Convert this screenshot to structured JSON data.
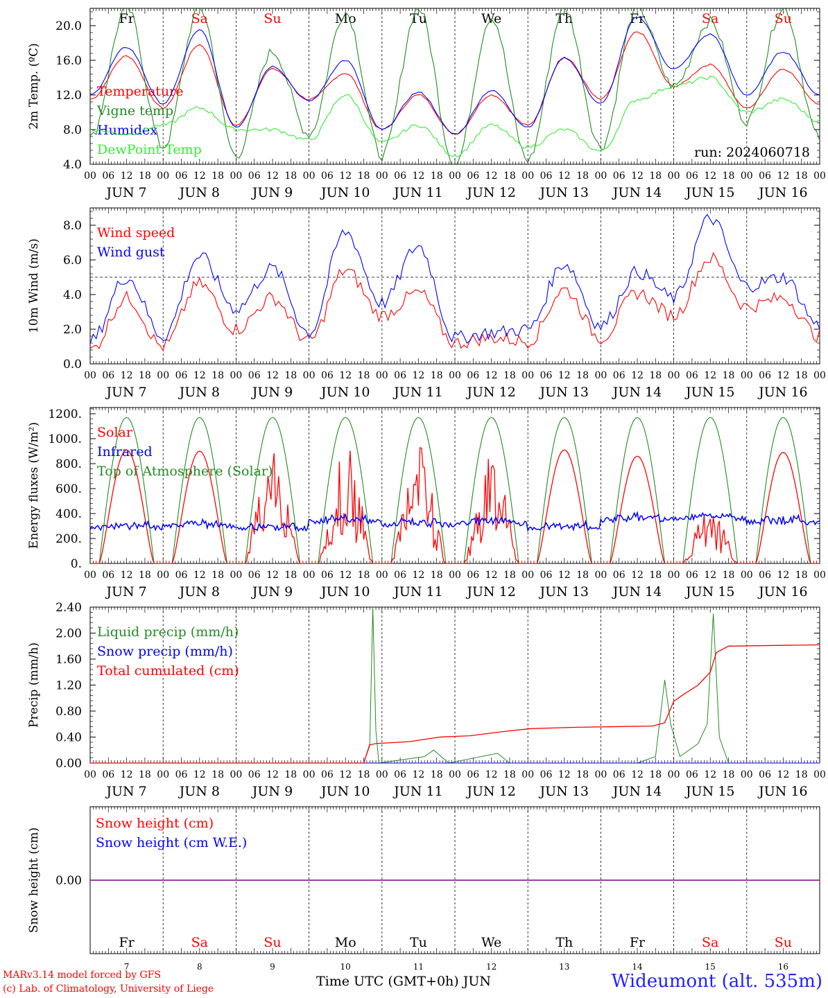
{
  "run_label": "run: 2024060718",
  "hour_ticks": [
    "00",
    "06",
    "12",
    "18"
  ],
  "last_hour_tick": "00",
  "month": "JUN",
  "days": [
    "7",
    "8",
    "9",
    "10",
    "11",
    "12",
    "13",
    "14",
    "15",
    "16"
  ],
  "day_names": [
    "Fr",
    "Sa",
    "Su",
    "Mo",
    "Tu",
    "We",
    "Th",
    "Fr",
    "Sa",
    "Su"
  ],
  "weekend_flags": [
    false,
    true,
    true,
    false,
    false,
    false,
    false,
    false,
    true,
    true
  ],
  "x_axis_title": "Time UTC (GMT+0h)",
  "x_axis_month": "JUN",
  "credits": [
    "MARv3.14 model forced by GFS",
    "(c) Lab. of Climatology, University of Liege"
  ],
  "station": "Wideumont (alt. 535m)",
  "colors": {
    "red": "#ff0000",
    "blue": "#0000ff",
    "green": "#00aa00",
    "darkgreen": "#228b22",
    "lightgreen": "#33ee33",
    "purple": "#800080",
    "weekday": "#000000",
    "weekend": "#ff0000"
  },
  "chart_data": [
    {
      "type": "line",
      "ylabel": "2m Temp. (ºC)",
      "ylim": [
        4,
        22
      ],
      "yticks": [
        "4.0",
        "8.0",
        "12.0",
        "16.0",
        "20.0"
      ],
      "ytick_values": [
        4,
        8,
        12,
        16,
        20
      ],
      "x_hours": [
        0,
        12,
        24,
        36,
        48,
        60,
        72,
        84,
        96,
        108,
        120,
        132,
        144,
        156,
        168,
        180,
        192,
        204,
        216,
        228,
        240
      ],
      "series": [
        {
          "name": "Temperature",
          "color": "#ff0000",
          "values": [
            11.5,
            16.5,
            10.5,
            17.8,
            8.5,
            15.0,
            11.5,
            14.5,
            8.0,
            12.0,
            7.5,
            12.0,
            8.5,
            16.3,
            11.5,
            19.3,
            13.0,
            15.5,
            10.5,
            15.0,
            11.0
          ]
        },
        {
          "name": "Vigne temp",
          "color": "#228b22",
          "values": [
            7.0,
            22.0,
            6.0,
            22.0,
            5.0,
            17.0,
            7.5,
            21.5,
            5.0,
            22.0,
            4.0,
            21.0,
            4.5,
            22.0,
            6.0,
            22.0,
            13.0,
            20.5,
            9.0,
            22.0,
            7.0
          ]
        },
        {
          "name": "Humidex",
          "color": "#0000ff",
          "values": [
            12.0,
            17.5,
            11.0,
            19.5,
            8.3,
            15.3,
            11.3,
            16.0,
            8.0,
            12.3,
            7.5,
            12.5,
            8.3,
            16.3,
            11.0,
            21.0,
            15.0,
            19.0,
            12.0,
            17.0,
            12.0
          ]
        },
        {
          "name": "DewPoint Temp",
          "color": "#33ee33",
          "values": [
            8.0,
            7.5,
            8.5,
            10.5,
            8.0,
            8.0,
            6.8,
            12.0,
            6.5,
            8.5,
            5.0,
            8.5,
            6.0,
            8.0,
            5.5,
            11.5,
            13.0,
            14.0,
            10.0,
            11.5,
            9.0
          ]
        }
      ]
    },
    {
      "type": "line",
      "ylabel": "10m Wind (m/s)",
      "ylim": [
        0,
        9
      ],
      "yticks": [
        "0.0",
        "2.0",
        "4.0",
        "6.0",
        "8.0"
      ],
      "ytick_values": [
        0,
        2,
        4,
        6,
        8
      ],
      "reference_line": 5.0,
      "x_hours": [
        0,
        12,
        24,
        36,
        48,
        60,
        72,
        84,
        96,
        108,
        120,
        132,
        144,
        156,
        168,
        180,
        192,
        204,
        216,
        228,
        240
      ],
      "series": [
        {
          "name": "Wind speed",
          "color": "#ff0000",
          "values": [
            0.8,
            3.8,
            1.0,
            4.6,
            2.0,
            3.8,
            1.3,
            5.4,
            2.8,
            4.1,
            1.2,
            1.5,
            1.3,
            4.3,
            1.5,
            4.1,
            2.8,
            6.1,
            3.3,
            3.8,
            1.6
          ]
        },
        {
          "name": "Wind gust",
          "color": "#0000ff",
          "values": [
            1.3,
            5.0,
            1.6,
            6.2,
            3.2,
            5.5,
            1.8,
            7.6,
            3.5,
            6.8,
            1.5,
            1.8,
            2.0,
            5.8,
            2.2,
            5.3,
            3.8,
            8.4,
            4.5,
            5.0,
            2.2
          ]
        }
      ]
    },
    {
      "type": "line",
      "ylabel": "Energy fluxes (W/m²)",
      "ylim": [
        0,
        1250
      ],
      "yticks": [
        "0.",
        "200.",
        "400.",
        "600.",
        "800.",
        "1000.",
        "1200."
      ],
      "ytick_values": [
        0,
        200,
        400,
        600,
        800,
        1000,
        1200
      ],
      "peak_hours": [
        12,
        36,
        60,
        84,
        108,
        132,
        156,
        180,
        204,
        228
      ],
      "series": [
        {
          "name": "Solar",
          "color": "#ff0000",
          "daily_peaks": [
            910,
            900,
            860,
            830,
            830,
            800,
            910,
            860,
            400,
            890
          ]
        },
        {
          "name": "Infrared",
          "color": "#0000ff",
          "daily_means": [
            285,
            300,
            280,
            340,
            310,
            320,
            280,
            350,
            360,
            330
          ]
        },
        {
          "name": "Top of Atmosphere (Solar)",
          "color": "#228b22",
          "daily_peaks": [
            1170,
            1170,
            1170,
            1170,
            1170,
            1170,
            1170,
            1170,
            1170,
            1170
          ]
        }
      ]
    },
    {
      "type": "line",
      "ylabel": "Precip (mm/h)",
      "ylim": [
        0,
        2.4
      ],
      "yticks": [
        "0.00",
        "0.40",
        "0.80",
        "1.20",
        "1.60",
        "2.00",
        "2.40"
      ],
      "ytick_values": [
        0,
        0.4,
        0.8,
        1.2,
        1.6,
        2.0,
        2.4
      ],
      "series": [
        {
          "name": "Liquid precip (mm/h)",
          "color": "#228b22",
          "points": [
            [
              0,
              0
            ],
            [
              90,
              0
            ],
            [
              92,
              0.3
            ],
            [
              93,
              2.4
            ],
            [
              94,
              0.5
            ],
            [
              95,
              0
            ],
            [
              110,
              0.1
            ],
            [
              113,
              0.2
            ],
            [
              118,
              0
            ],
            [
              134,
              0.15
            ],
            [
              138,
              0
            ],
            [
              180,
              0
            ],
            [
              186,
              0.1
            ],
            [
              189,
              1.28
            ],
            [
              191,
              0.6
            ],
            [
              194,
              0.1
            ],
            [
              200,
              0.3
            ],
            [
              203,
              0.6
            ],
            [
              205,
              2.3
            ],
            [
              207,
              0.4
            ],
            [
              210,
              0
            ],
            [
              240,
              0
            ]
          ]
        },
        {
          "name": "Snow precip (mm/h)",
          "color": "#0000ff",
          "points": [
            [
              0,
              0
            ],
            [
              240,
              0
            ]
          ]
        },
        {
          "name": "Total cumulated (cm)",
          "color": "#ff0000",
          "points": [
            [
              0,
              0
            ],
            [
              90,
              0
            ],
            [
              92,
              0.28
            ],
            [
              94,
              0.3
            ],
            [
              105,
              0.33
            ],
            [
              115,
              0.4
            ],
            [
              125,
              0.42
            ],
            [
              135,
              0.48
            ],
            [
              145,
              0.53
            ],
            [
              160,
              0.55
            ],
            [
              185,
              0.57
            ],
            [
              189,
              0.62
            ],
            [
              192,
              0.95
            ],
            [
              195,
              1.05
            ],
            [
              200,
              1.2
            ],
            [
              204,
              1.4
            ],
            [
              206,
              1.7
            ],
            [
              210,
              1.8
            ],
            [
              240,
              1.82
            ]
          ]
        }
      ]
    },
    {
      "type": "line",
      "ylabel": "Snow height (cm)",
      "ylim": [
        -1,
        1
      ],
      "yticks": [
        "0.00"
      ],
      "ytick_values": [
        0
      ],
      "series": [
        {
          "name": "Snow height (cm)",
          "color": "#ff0000",
          "values": [
            0,
            0
          ]
        },
        {
          "name": "Snow height (cm W.E.)",
          "color": "#0000ff",
          "values": [
            0,
            0
          ]
        }
      ]
    }
  ]
}
